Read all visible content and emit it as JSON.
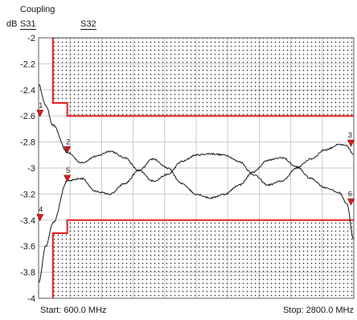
{
  "chart_data": {
    "type": "line",
    "title": "Coupling",
    "ylabel": "dB",
    "ylim": [
      -4,
      -2
    ],
    "y_ticks": [
      "-2",
      "-2.2",
      "-2.4",
      "-2.6",
      "-2.8",
      "-3",
      "-3.2",
      "-3.4",
      "-3.6",
      "-3.8",
      "-4"
    ],
    "xlim": [
      600,
      2800
    ],
    "x_unit": "MHz",
    "grid": true,
    "start_label": "Start: 600.0 MHz",
    "stop_label": "Stop: 2800.0 MHz",
    "series": [
      {
        "name": "S31",
        "x": [
          600,
          650,
          700,
          800,
          900,
          1000,
          1100,
          1200,
          1300,
          1400,
          1500,
          1600,
          1700,
          1800,
          1900,
          2000,
          2100,
          2200,
          2300,
          2400,
          2500,
          2600,
          2700,
          2750,
          2800
        ],
        "values": [
          -2.36,
          -2.52,
          -2.67,
          -2.88,
          -2.96,
          -2.91,
          -2.87,
          -2.92,
          -3.02,
          -3.1,
          -3.05,
          -2.95,
          -2.9,
          -2.89,
          -2.9,
          -2.95,
          -3.05,
          -3.13,
          -3.1,
          -3.0,
          -2.93,
          -2.86,
          -2.82,
          -2.83,
          -2.9
        ]
      },
      {
        "name": "S32",
        "x": [
          600,
          650,
          700,
          800,
          900,
          1000,
          1100,
          1200,
          1300,
          1400,
          1500,
          1600,
          1700,
          1800,
          1900,
          2000,
          2100,
          2200,
          2300,
          2400,
          2500,
          2600,
          2700,
          2750,
          2800
        ],
        "values": [
          -3.88,
          -3.6,
          -3.42,
          -3.1,
          -3.08,
          -3.18,
          -3.2,
          -3.12,
          -3.02,
          -2.93,
          -3.0,
          -3.12,
          -3.2,
          -3.23,
          -3.2,
          -3.13,
          -3.03,
          -2.94,
          -2.92,
          -2.99,
          -3.08,
          -3.15,
          -3.19,
          -3.27,
          -3.55
        ]
      }
    ],
    "limit_lines": [
      {
        "x": [
          700,
          700,
          800,
          800,
          2800
        ],
        "values": [
          -2,
          -2.5,
          -2.5,
          -2.6,
          -2.6
        ]
      },
      {
        "x": [
          700,
          700,
          800,
          800,
          2800
        ],
        "values": [
          -4,
          -3.5,
          -3.5,
          -3.4,
          -3.4
        ]
      }
    ],
    "markers": [
      {
        "label": "1",
        "x": 610,
        "y": -2.58
      },
      {
        "label": "2",
        "x": 800,
        "y": -2.86
      },
      {
        "label": "3",
        "x": 2780,
        "y": -2.81
      },
      {
        "label": "4",
        "x": 610,
        "y": -3.38
      },
      {
        "label": "5",
        "x": 800,
        "y": -3.08
      },
      {
        "label": "6",
        "x": 2780,
        "y": -3.26
      }
    ],
    "colors": {
      "trace": "#111111",
      "limit": "#e31a1c",
      "grid": "#c8c8c8",
      "marker": "#d62020"
    }
  }
}
